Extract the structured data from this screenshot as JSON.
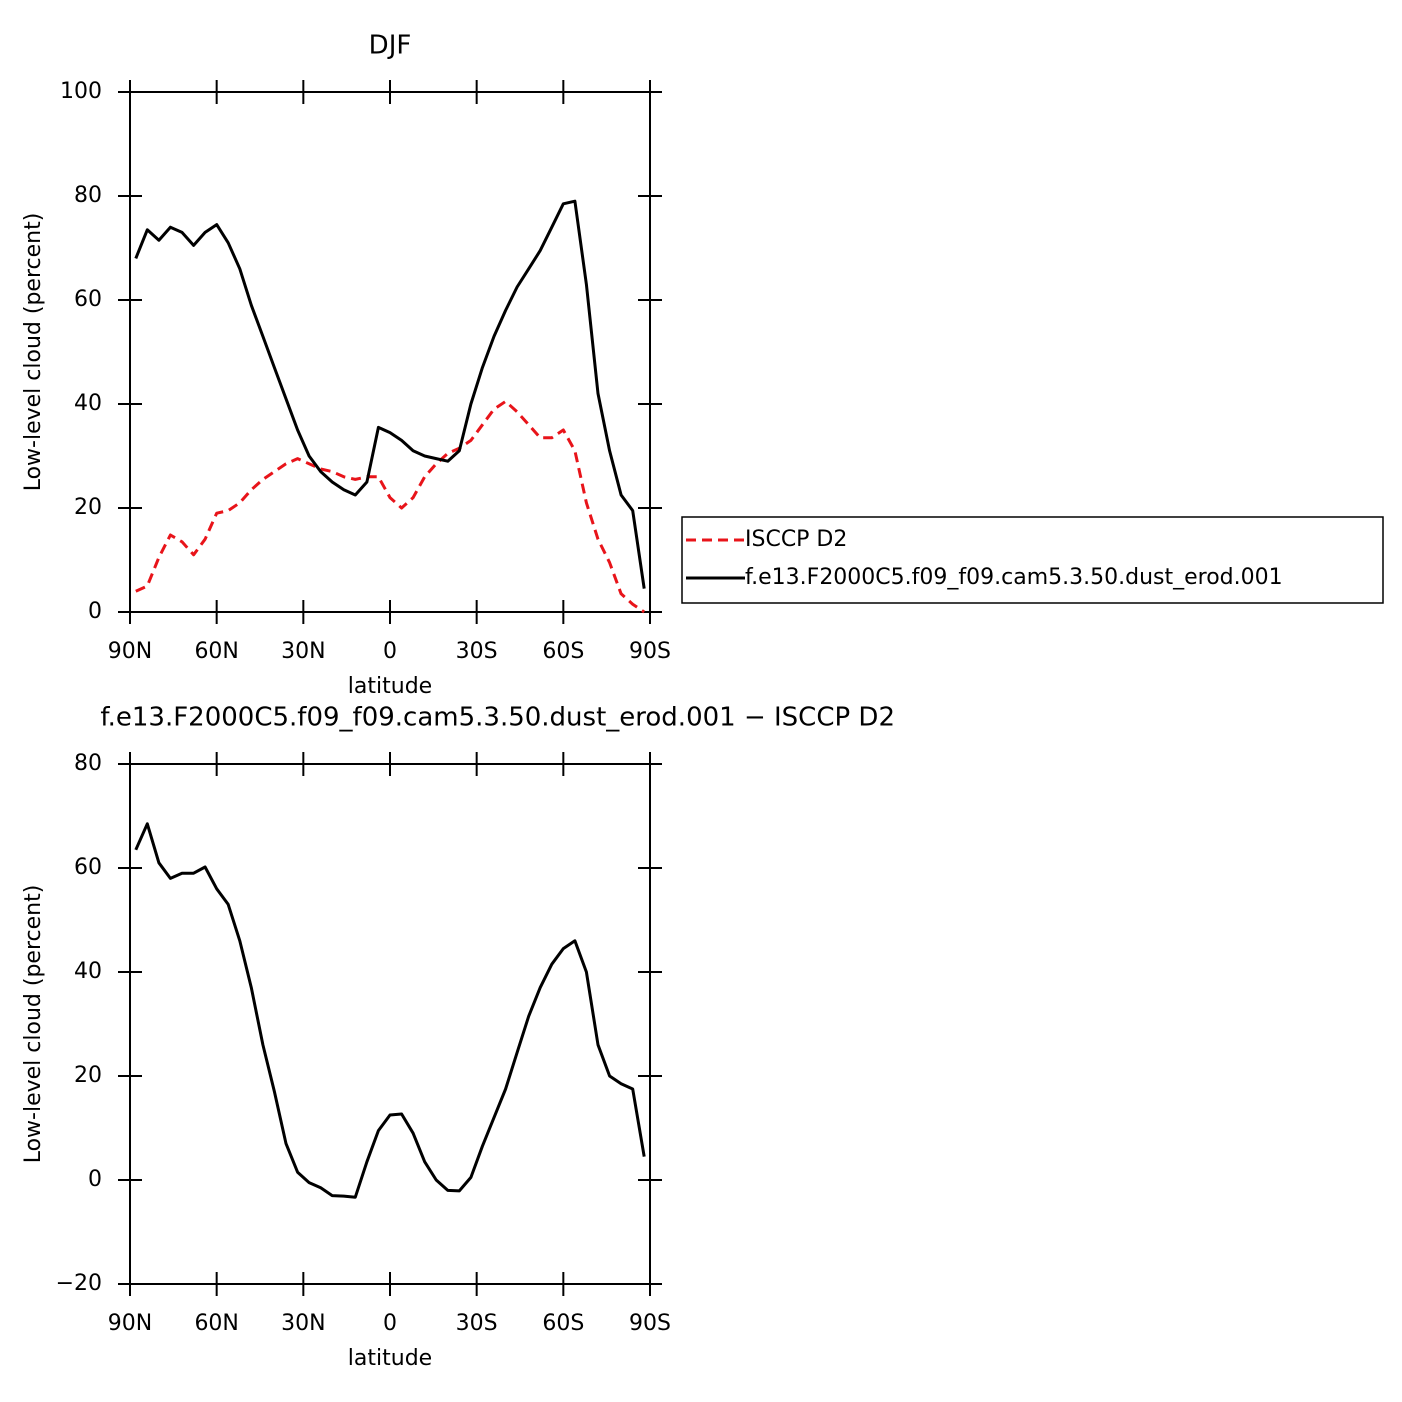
{
  "chart_data": [
    {
      "type": "line",
      "title": "DJF",
      "x_label": "latitude",
      "y_label": "Low-level cloud (percent)",
      "x": [
        88,
        84,
        80,
        76,
        72,
        68,
        64,
        60,
        56,
        52,
        48,
        44,
        40,
        36,
        32,
        28,
        24,
        20,
        16,
        12,
        8,
        4,
        0,
        -4,
        -8,
        -12,
        -16,
        -20,
        -24,
        -28,
        -32,
        -36,
        -40,
        -44,
        -48,
        -52,
        -56,
        -60,
        -64,
        -68,
        -72,
        -76,
        -80,
        -84,
        -88
      ],
      "series": [
        {
          "name": "ISCCP D2",
          "color": "#e8141a",
          "style": "dashed",
          "values": [
            4,
            5,
            10.5,
            14.8,
            13.5,
            11,
            14,
            19,
            19.5,
            21,
            23.5,
            25.5,
            27,
            28.5,
            29.5,
            28.5,
            27.5,
            27,
            26,
            25.5,
            26,
            26,
            22,
            20,
            22,
            26,
            28.5,
            30.5,
            31.5,
            33,
            36,
            39,
            40.5,
            38.5,
            36,
            33.5,
            33.5,
            35,
            31,
            21,
            14,
            9.5,
            3.5,
            1.5,
            0
          ]
        },
        {
          "name": "f.e13.F2000C5.f09_f09.cam5.3.50.dust_erod.001",
          "color": "#000000",
          "style": "solid",
          "values": [
            68,
            73.5,
            71.5,
            74,
            73,
            70.5,
            73,
            74.5,
            71,
            66,
            59,
            53,
            47,
            41,
            35,
            30,
            27,
            25,
            23.5,
            22.5,
            25,
            35.5,
            34.5,
            33,
            31,
            30,
            29.5,
            29,
            31,
            40,
            47,
            53,
            58,
            62.5,
            66,
            69.5,
            74,
            78.5,
            79,
            63,
            42,
            31,
            22.5,
            19.5,
            4.5
          ]
        }
      ],
      "xlim": [
        90,
        -90
      ],
      "xticks": [
        {
          "value": 90,
          "label": "90N"
        },
        {
          "value": 60,
          "label": "60N"
        },
        {
          "value": 30,
          "label": "30N"
        },
        0,
        {
          "value": -30,
          "label": "30S"
        },
        {
          "value": -60,
          "label": "60S"
        },
        {
          "value": -90,
          "label": "90S"
        }
      ],
      "ylim": [
        0,
        100
      ],
      "yticks": [
        0,
        20,
        40,
        60,
        80,
        100
      ],
      "legend": "right"
    },
    {
      "type": "line",
      "title": "f.e13.F2000C5.f09_f09.cam5.3.50.dust_erod.001 − ISCCP D2",
      "x_label": "latitude",
      "y_label": "Low-level cloud (percent)",
      "x": [
        88,
        84,
        80,
        76,
        72,
        68,
        64,
        60,
        56,
        52,
        48,
        44,
        40,
        36,
        32,
        28,
        24,
        20,
        16,
        12,
        8,
        4,
        0,
        -4,
        -8,
        -12,
        -16,
        -20,
        -24,
        -28,
        -32,
        -36,
        -40,
        -44,
        -48,
        -52,
        -56,
        -60,
        -64,
        -68,
        -72,
        -76,
        -80,
        -84,
        -88
      ],
      "series": [
        {
          "color": "#000000",
          "style": "solid",
          "values": [
            63.5,
            68.5,
            61,
            58,
            59,
            59,
            60.2,
            56,
            53,
            46,
            37,
            26,
            17,
            7,
            1.5,
            -0.5,
            -1.5,
            -3,
            -3.1,
            -3.3,
            3.5,
            9.5,
            12.5,
            12.7,
            9,
            3.5,
            0,
            -2,
            -2.1,
            0.5,
            6.5,
            12,
            17.5,
            24.5,
            31.5,
            37,
            41.5,
            44.5,
            46,
            40,
            26,
            20,
            18.5,
            17.5,
            4.5
          ]
        }
      ],
      "xlim": [
        90,
        -90
      ],
      "xticks": [
        {
          "value": 90,
          "label": "90N"
        },
        {
          "value": 60,
          "label": "60N"
        },
        {
          "value": 30,
          "label": "30N"
        },
        0,
        {
          "value": -30,
          "label": "30S"
        },
        {
          "value": -60,
          "label": "60S"
        },
        {
          "value": -90,
          "label": "90S"
        }
      ],
      "ylim": [
        -20,
        80
      ],
      "yticks": [
        {
          "value": -20,
          "label": "−20"
        },
        0,
        20,
        40,
        60,
        80
      ]
    }
  ]
}
